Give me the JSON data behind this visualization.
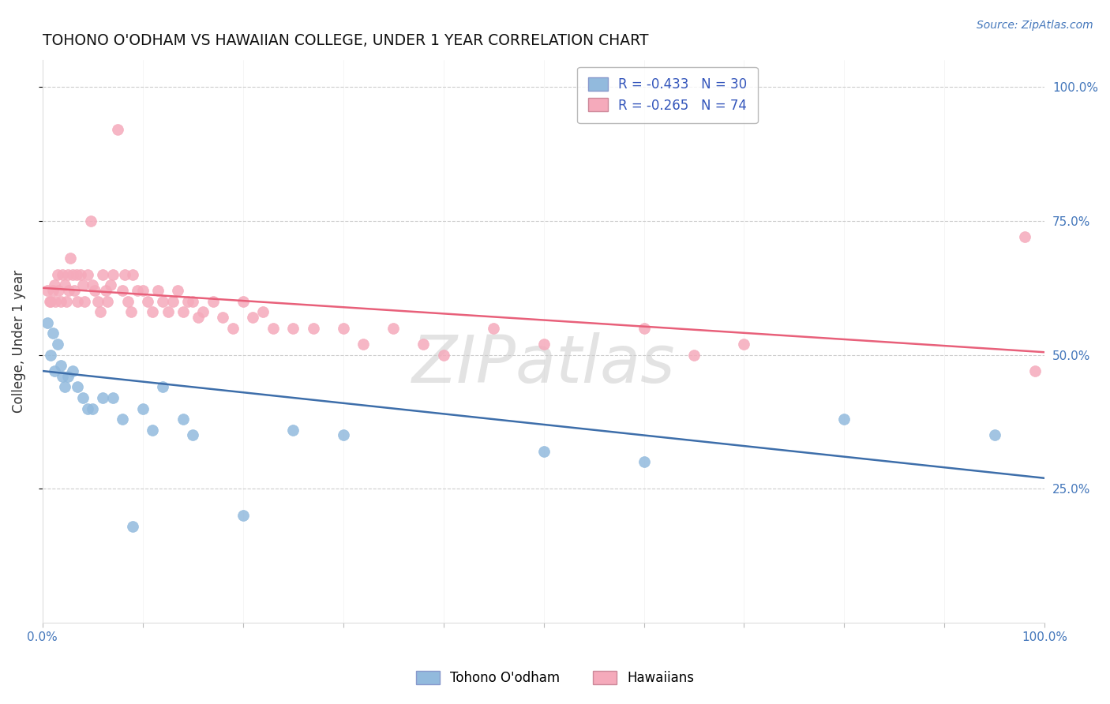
{
  "title": "TOHONO O'ODHAM VS HAWAIIAN COLLEGE, UNDER 1 YEAR CORRELATION CHART",
  "source": "Source: ZipAtlas.com",
  "ylabel": "College, Under 1 year",
  "legend1_r": "-0.433",
  "legend1_n": "30",
  "legend2_r": "-0.265",
  "legend2_n": "74",
  "legend1_label": "Tohono O'odham",
  "legend2_label": "Hawaiians",
  "blue_color": "#92BADD",
  "pink_color": "#F5AABB",
  "blue_line_color": "#3D6EAA",
  "pink_line_color": "#E8607A",
  "tohono_x": [
    0.005,
    0.008,
    0.01,
    0.012,
    0.015,
    0.018,
    0.02,
    0.022,
    0.025,
    0.03,
    0.035,
    0.04,
    0.045,
    0.05,
    0.06,
    0.07,
    0.08,
    0.09,
    0.1,
    0.11,
    0.12,
    0.14,
    0.15,
    0.2,
    0.25,
    0.3,
    0.5,
    0.6,
    0.8,
    0.95
  ],
  "tohono_y": [
    0.56,
    0.5,
    0.54,
    0.47,
    0.52,
    0.48,
    0.46,
    0.44,
    0.46,
    0.47,
    0.44,
    0.42,
    0.4,
    0.4,
    0.42,
    0.42,
    0.38,
    0.18,
    0.4,
    0.36,
    0.44,
    0.38,
    0.35,
    0.2,
    0.36,
    0.35,
    0.32,
    0.3,
    0.38,
    0.35
  ],
  "hawaiian_x": [
    0.005,
    0.007,
    0.008,
    0.01,
    0.012,
    0.013,
    0.015,
    0.016,
    0.018,
    0.02,
    0.022,
    0.024,
    0.025,
    0.026,
    0.028,
    0.03,
    0.032,
    0.034,
    0.035,
    0.038,
    0.04,
    0.042,
    0.045,
    0.048,
    0.05,
    0.052,
    0.055,
    0.058,
    0.06,
    0.063,
    0.065,
    0.068,
    0.07,
    0.075,
    0.08,
    0.082,
    0.085,
    0.088,
    0.09,
    0.095,
    0.1,
    0.105,
    0.11,
    0.115,
    0.12,
    0.125,
    0.13,
    0.135,
    0.14,
    0.145,
    0.15,
    0.155,
    0.16,
    0.17,
    0.18,
    0.19,
    0.2,
    0.21,
    0.22,
    0.23,
    0.25,
    0.27,
    0.3,
    0.32,
    0.35,
    0.38,
    0.4,
    0.45,
    0.5,
    0.6,
    0.65,
    0.7,
    0.98,
    0.99
  ],
  "hawaiian_y": [
    0.62,
    0.6,
    0.6,
    0.62,
    0.63,
    0.6,
    0.65,
    0.62,
    0.6,
    0.65,
    0.63,
    0.6,
    0.65,
    0.62,
    0.68,
    0.65,
    0.62,
    0.65,
    0.6,
    0.65,
    0.63,
    0.6,
    0.65,
    0.75,
    0.63,
    0.62,
    0.6,
    0.58,
    0.65,
    0.62,
    0.6,
    0.63,
    0.65,
    0.92,
    0.62,
    0.65,
    0.6,
    0.58,
    0.65,
    0.62,
    0.62,
    0.6,
    0.58,
    0.62,
    0.6,
    0.58,
    0.6,
    0.62,
    0.58,
    0.6,
    0.6,
    0.57,
    0.58,
    0.6,
    0.57,
    0.55,
    0.6,
    0.57,
    0.58,
    0.55,
    0.55,
    0.55,
    0.55,
    0.52,
    0.55,
    0.52,
    0.5,
    0.55,
    0.52,
    0.55,
    0.5,
    0.52,
    0.72,
    0.47
  ],
  "background_color": "#FFFFFF",
  "watermark": "ZIPatlas",
  "xlim": [
    0.0,
    1.0
  ],
  "ylim": [
    0.0,
    1.05
  ],
  "blue_line_x0": 0.0,
  "blue_line_y0": 0.47,
  "blue_line_x1": 1.0,
  "blue_line_y1": 0.27,
  "pink_line_x0": 0.0,
  "pink_line_y0": 0.625,
  "pink_line_x1": 1.0,
  "pink_line_y1": 0.505
}
